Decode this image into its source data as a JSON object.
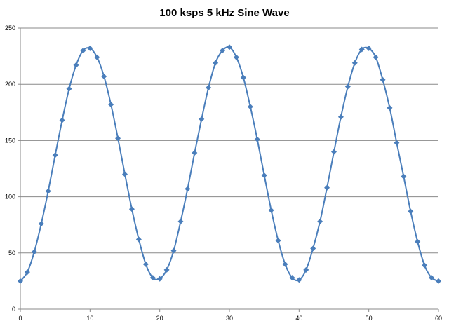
{
  "chart_data": {
    "type": "line",
    "title": "100 ksps 5 kHz Sine Wave",
    "xlabel": "",
    "ylabel": "",
    "xlim": [
      0,
      60
    ],
    "ylim": [
      0,
      250
    ],
    "x_ticks": [
      "0",
      "10",
      "20",
      "30",
      "40",
      "50",
      "60"
    ],
    "y_ticks": [
      "0",
      "50",
      "100",
      "150",
      "200",
      "250"
    ],
    "x_tick_values": [
      0,
      10,
      20,
      30,
      40,
      50,
      60
    ],
    "y_tick_values": [
      0,
      50,
      100,
      150,
      200,
      250
    ],
    "y_gridlines": [
      50,
      100,
      150,
      200,
      250
    ],
    "grid": true,
    "legend": "none",
    "marker": "diamond",
    "series_color": "#4a7ebb",
    "series": [
      {
        "x": [
          0,
          1,
          2,
          3,
          4,
          5,
          6,
          7,
          8,
          9,
          10,
          11,
          12,
          13,
          14,
          15,
          16,
          17,
          18,
          19,
          20,
          21,
          22,
          23,
          24,
          25,
          26,
          27,
          28,
          29,
          30,
          31,
          32,
          33,
          34,
          35,
          36,
          37,
          38,
          39,
          40,
          41,
          42,
          43,
          44,
          45,
          46,
          47,
          48,
          49,
          50,
          51,
          52,
          53,
          54,
          55,
          56,
          57,
          58,
          59,
          60
        ],
        "values": [
          25,
          33,
          51,
          76,
          105,
          137,
          168,
          196,
          217,
          230,
          232,
          224,
          207,
          182,
          152,
          120,
          89,
          62,
          40,
          28,
          27,
          35,
          52,
          78,
          107,
          139,
          169,
          197,
          219,
          230,
          233,
          224,
          206,
          180,
          151,
          119,
          88,
          61,
          40,
          28,
          26,
          35,
          54,
          78,
          108,
          140,
          171,
          198,
          219,
          231,
          232,
          224,
          204,
          179,
          148,
          118,
          87,
          60,
          39,
          28,
          25
        ]
      }
    ]
  }
}
